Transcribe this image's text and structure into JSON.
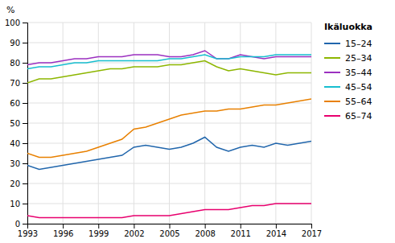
{
  "chart_data": {
    "type": "line",
    "ylabel": "%",
    "legend_title": "Ikäluokka",
    "legend": "right",
    "grid": true,
    "x": [
      1993,
      1994,
      1995,
      1996,
      1997,
      1998,
      1999,
      2000,
      2001,
      2002,
      2003,
      2004,
      2005,
      2006,
      2007,
      2008,
      2009,
      2010,
      2011,
      2012,
      2013,
      2014,
      2015,
      2016,
      2017
    ],
    "xlim": [
      1993,
      2017
    ],
    "xticks": [
      1993,
      1996,
      1999,
      2002,
      2005,
      2008,
      2011,
      2014,
      2017
    ],
    "ylim": [
      0,
      100
    ],
    "yticks": [
      0,
      10,
      20,
      30,
      40,
      50,
      60,
      70,
      80,
      90,
      100
    ],
    "series": [
      {
        "name": "15–24",
        "color": "#2166ac",
        "values": [
          29,
          27,
          28,
          29,
          30,
          31,
          32,
          33,
          34,
          38,
          39,
          38,
          37,
          38,
          40,
          43,
          38,
          36,
          38,
          39,
          38,
          40,
          39,
          40,
          41
        ]
      },
      {
        "name": "25–34",
        "color": "#8db600",
        "values": [
          70,
          72,
          72,
          73,
          74,
          75,
          76,
          77,
          77,
          78,
          78,
          78,
          79,
          79,
          80,
          81,
          78,
          76,
          77,
          76,
          75,
          74,
          75,
          75,
          75
        ]
      },
      {
        "name": "35–44",
        "color": "#9b30c0",
        "values": [
          79,
          80,
          80,
          81,
          82,
          82,
          83,
          83,
          83,
          84,
          84,
          84,
          83,
          83,
          84,
          86,
          82,
          82,
          84,
          83,
          82,
          83,
          83,
          83,
          83
        ]
      },
      {
        "name": "45–54",
        "color": "#17becf",
        "values": [
          77,
          78,
          78,
          79,
          80,
          80,
          81,
          81,
          81,
          81,
          81,
          81,
          82,
          82,
          83,
          84,
          82,
          82,
          83,
          83,
          83,
          84,
          84,
          84,
          84
        ]
      },
      {
        "name": "55–64",
        "color": "#e88000",
        "values": [
          35,
          33,
          33,
          34,
          35,
          36,
          38,
          40,
          42,
          47,
          48,
          50,
          52,
          54,
          55,
          56,
          56,
          57,
          57,
          58,
          59,
          59,
          60,
          61,
          62
        ]
      },
      {
        "name": "65–74",
        "color": "#e8006e",
        "values": [
          4,
          3,
          3,
          3,
          3,
          3,
          3,
          3,
          3,
          4,
          4,
          4,
          4,
          5,
          6,
          7,
          7,
          7,
          8,
          9,
          9,
          10,
          10,
          10,
          10
        ]
      }
    ]
  }
}
